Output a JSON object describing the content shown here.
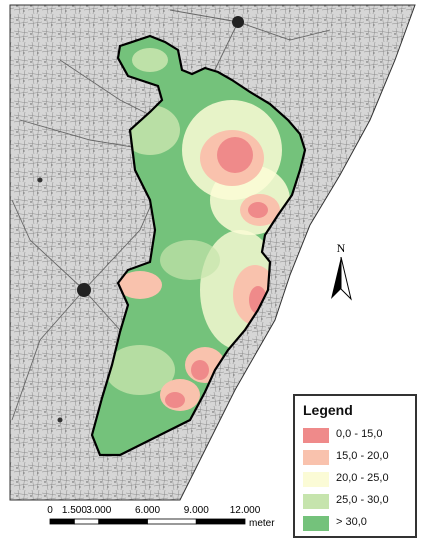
{
  "map": {
    "land_color": "#d9d9d9",
    "sea_color": "#ffffff",
    "line_color": "#7a7a7a",
    "boundary_color": "#000000"
  },
  "north_arrow": {
    "label": "N"
  },
  "legend": {
    "title": "Legend",
    "items": [
      {
        "label": "0,0 - 15,0",
        "color": "#ef8a8a"
      },
      {
        "label": "15,0 - 20,0",
        "color": "#f9c2ad"
      },
      {
        "label": "20,0 - 25,0",
        "color": "#fbfbd6"
      },
      {
        "label": "25,0 - 30,0",
        "color": "#c6e4ad"
      },
      {
        "label": "> 30,0",
        "color": "#74c27b"
      }
    ]
  },
  "scale": {
    "ticks": [
      "0",
      "1.500",
      "3.000",
      "6.000",
      "9.000",
      "12.000"
    ],
    "tick_values": [
      0,
      1500,
      3000,
      6000,
      9000,
      12000
    ],
    "unit": "meter"
  }
}
